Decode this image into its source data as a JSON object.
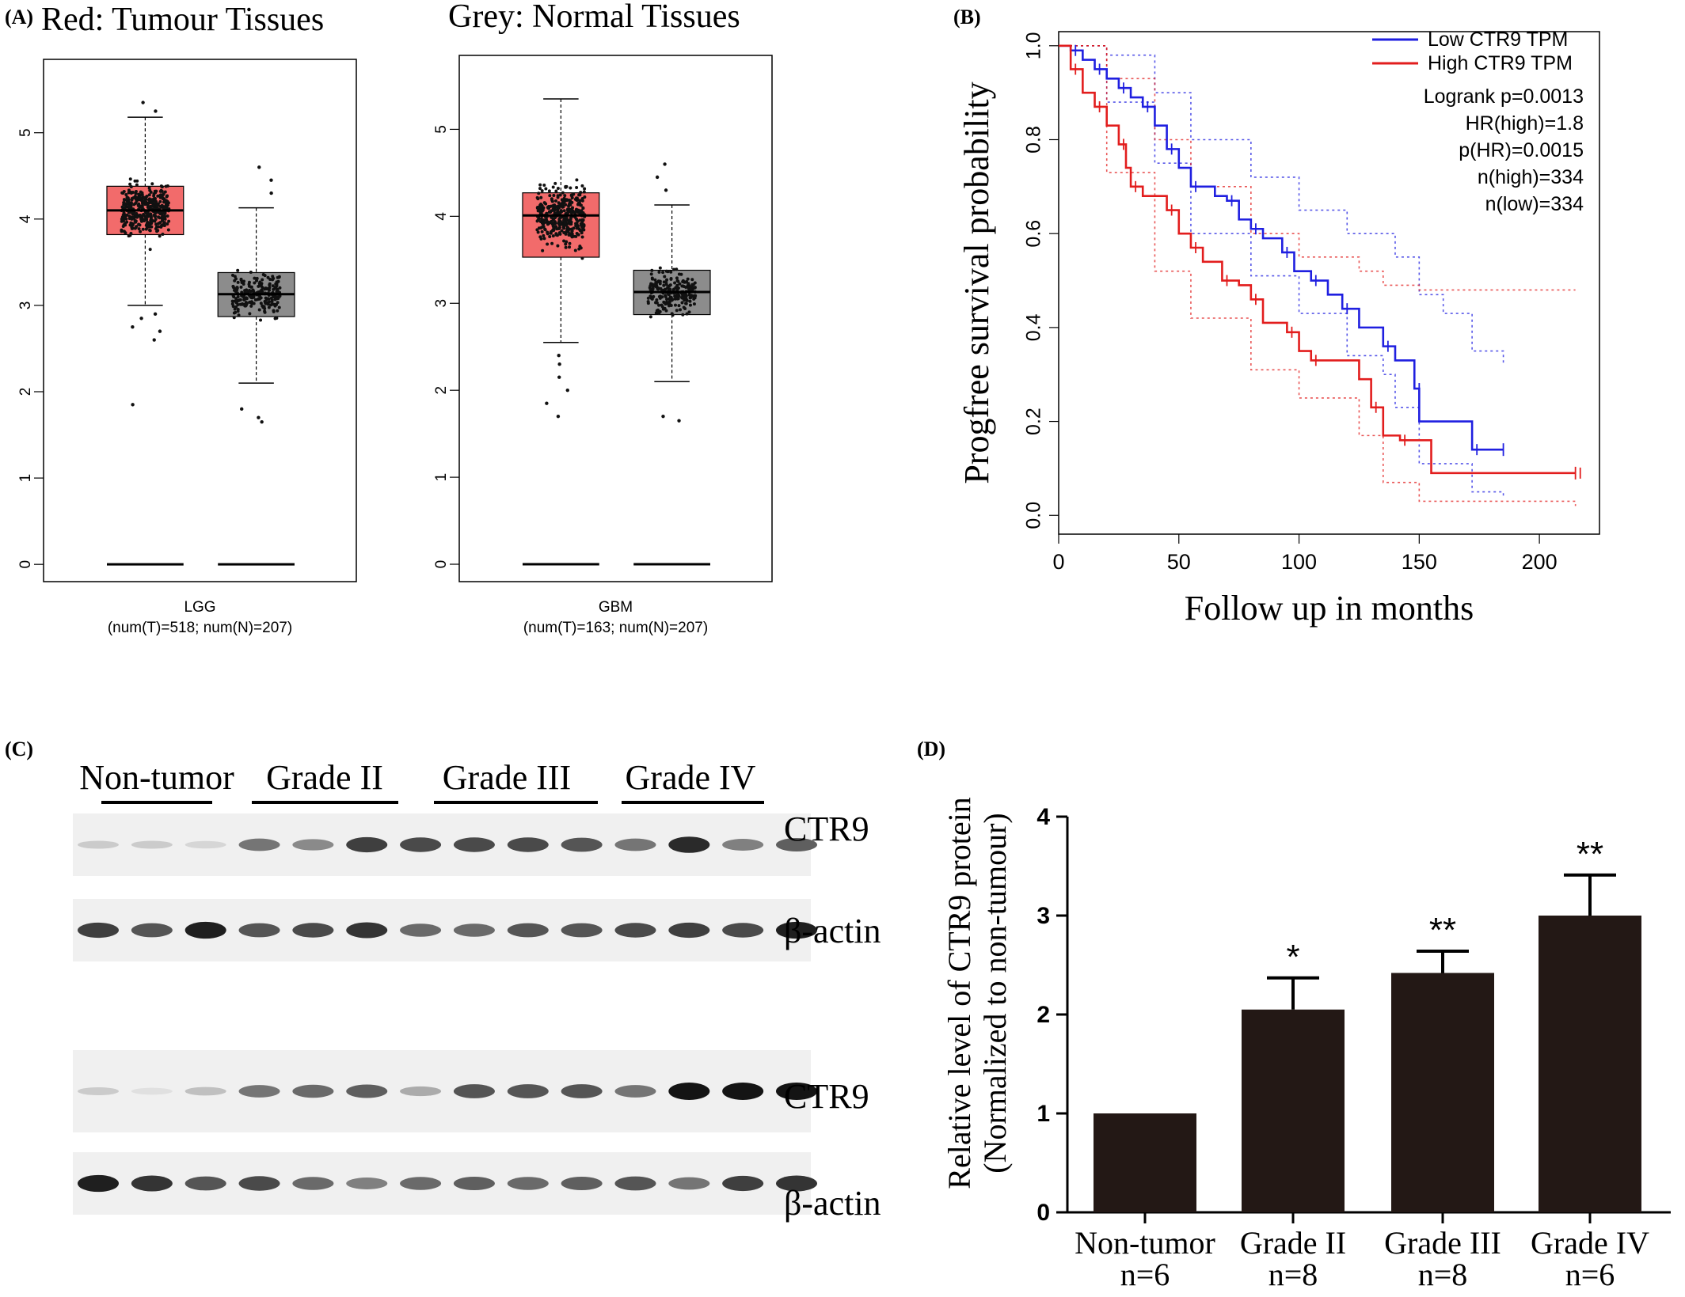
{
  "panel_labels": {
    "a": "(A)",
    "b": "(B)",
    "c": "(C)",
    "d": "(D)"
  },
  "panel_a": {
    "title_red": "Red: Tumour Tissues",
    "title_grey": "Grey: Normal Tissues",
    "colors": {
      "tumour": "#f26b6b",
      "normal": "#8c8c8c"
    }
  },
  "panel_b": {
    "xlabel": "Follow up in months",
    "ylabel": "Progfree survival probability",
    "legend": [
      {
        "label": "Low CTR9 TPM",
        "color": "#1f1fe0"
      },
      {
        "label": "High CTR9 TPM",
        "color": "#e21d1d"
      }
    ],
    "stats": [
      "Logrank p=0.0013",
      "HR(high)=1.8",
      "p(HR)=0.0015",
      "n(high)=334",
      "n(low)=334"
    ]
  },
  "panel_c": {
    "group_labels": [
      "Non-tumor",
      "Grade II",
      "Grade III",
      "Grade IV"
    ],
    "blot_labels": [
      "CTR9",
      "β-actin",
      "CTR9",
      "β-actin"
    ],
    "lane_groups": [
      3,
      4,
      4,
      3
    ],
    "band_intensity": [
      [
        0.15,
        0.15,
        0.1,
        0.55,
        0.45,
        0.8,
        0.75,
        0.75,
        0.75,
        0.7,
        0.55,
        0.9,
        0.5,
        0.65
      ],
      [
        0.8,
        0.7,
        0.95,
        0.7,
        0.75,
        0.85,
        0.6,
        0.6,
        0.7,
        0.7,
        0.75,
        0.8,
        0.75,
        0.95
      ],
      [
        0.15,
        0.05,
        0.2,
        0.55,
        0.6,
        0.65,
        0.3,
        0.7,
        0.7,
        0.7,
        0.55,
        1.0,
        1.0,
        1.0
      ],
      [
        0.95,
        0.85,
        0.7,
        0.75,
        0.6,
        0.5,
        0.6,
        0.65,
        0.6,
        0.65,
        0.7,
        0.55,
        0.8,
        0.85
      ]
    ]
  },
  "chart_data": [
    {
      "type": "box",
      "panel": "A-left",
      "categories": [
        "LGG"
      ],
      "xlabel": "LGG",
      "subtitle": "(num(T)=518; num(N)=207)",
      "yticks": [
        "0",
        "1",
        "2",
        "3",
        "4",
        "5"
      ],
      "ylim": [
        -0.2,
        5.85
      ],
      "groups": [
        {
          "name": "Tumour",
          "color": "#f26b6b",
          "min": 3.0,
          "q1": 3.82,
          "median": 4.1,
          "q3": 4.38,
          "max": 5.18,
          "outliers": [
            2.6,
            2.7,
            2.75,
            2.85,
            2.9,
            1.85,
            5.25,
            5.35
          ]
        },
        {
          "name": "Normal",
          "color": "#8c8c8c",
          "min": 2.1,
          "q1": 2.87,
          "median": 3.13,
          "q3": 3.38,
          "max": 4.13,
          "outliers": [
            1.65,
            1.7,
            1.8,
            4.3,
            4.45,
            4.6
          ]
        }
      ],
      "zero_lines": [
        0,
        0
      ]
    },
    {
      "type": "box",
      "panel": "A-right",
      "categories": [
        "GBM"
      ],
      "xlabel": "GBM",
      "subtitle": "(num(T)=163; num(N)=207)",
      "yticks": [
        "0",
        "1",
        "2",
        "3",
        "4",
        "5"
      ],
      "ylim": [
        -0.2,
        5.85
      ],
      "groups": [
        {
          "name": "Tumour",
          "color": "#f26b6b",
          "min": 2.55,
          "q1": 3.53,
          "median": 4.01,
          "q3": 4.27,
          "max": 5.35,
          "outliers": [
            1.7,
            1.85,
            2.0,
            2.15,
            2.3,
            2.4
          ]
        },
        {
          "name": "Normal",
          "color": "#8c8c8c",
          "min": 2.1,
          "q1": 2.87,
          "median": 3.13,
          "q3": 3.38,
          "max": 4.13,
          "outliers": [
            1.65,
            1.7,
            4.3,
            4.45,
            4.6
          ]
        }
      ],
      "zero_lines": [
        0,
        0
      ]
    },
    {
      "type": "line",
      "panel": "B",
      "xlabel": "Follow up in months",
      "ylabel": "Progfree survival probability",
      "xticks": [
        0,
        50,
        100,
        150,
        200
      ],
      "yticks": [
        "0.0",
        "0.2",
        "0.4",
        "0.6",
        "0.8",
        "1.0"
      ],
      "xlim": [
        0,
        225
      ],
      "ylim": [
        -0.04,
        1.03
      ],
      "series": [
        {
          "name": "Low CTR9 TPM",
          "color": "#1f1fe0",
          "steps": [
            [
              0,
              1.0
            ],
            [
              5,
              0.99
            ],
            [
              10,
              0.97
            ],
            [
              15,
              0.95
            ],
            [
              20,
              0.93
            ],
            [
              25,
              0.91
            ],
            [
              30,
              0.89
            ],
            [
              35,
              0.87
            ],
            [
              40,
              0.83
            ],
            [
              45,
              0.78
            ],
            [
              50,
              0.74
            ],
            [
              55,
              0.7
            ],
            [
              65,
              0.68
            ],
            [
              70,
              0.67
            ],
            [
              75,
              0.63
            ],
            [
              80,
              0.61
            ],
            [
              85,
              0.59
            ],
            [
              93,
              0.56
            ],
            [
              98,
              0.52
            ],
            [
              105,
              0.5
            ],
            [
              112,
              0.47
            ],
            [
              118,
              0.44
            ],
            [
              125,
              0.4
            ],
            [
              135,
              0.36
            ],
            [
              140,
              0.33
            ],
            [
              148,
              0.27
            ],
            [
              150,
              0.2
            ],
            [
              172,
              0.14
            ],
            [
              185,
              0.14
            ]
          ],
          "upper": [
            [
              0,
              1.0
            ],
            [
              20,
              0.98
            ],
            [
              40,
              0.9
            ],
            [
              55,
              0.8
            ],
            [
              80,
              0.72
            ],
            [
              100,
              0.65
            ],
            [
              120,
              0.6
            ],
            [
              140,
              0.55
            ],
            [
              150,
              0.47
            ],
            [
              160,
              0.43
            ],
            [
              172,
              0.35
            ],
            [
              185,
              0.32
            ]
          ],
          "lower": [
            [
              0,
              1.0
            ],
            [
              20,
              0.88
            ],
            [
              40,
              0.75
            ],
            [
              55,
              0.6
            ],
            [
              80,
              0.51
            ],
            [
              100,
              0.43
            ],
            [
              120,
              0.34
            ],
            [
              135,
              0.3
            ],
            [
              140,
              0.23
            ],
            [
              150,
              0.11
            ],
            [
              172,
              0.05
            ],
            [
              185,
              0.04
            ]
          ]
        },
        {
          "name": "High CTR9 TPM",
          "color": "#e21d1d",
          "steps": [
            [
              0,
              1.0
            ],
            [
              5,
              0.95
            ],
            [
              10,
              0.9
            ],
            [
              15,
              0.87
            ],
            [
              20,
              0.83
            ],
            [
              25,
              0.79
            ],
            [
              28,
              0.74
            ],
            [
              30,
              0.7
            ],
            [
              35,
              0.68
            ],
            [
              45,
              0.65
            ],
            [
              50,
              0.6
            ],
            [
              55,
              0.57
            ],
            [
              60,
              0.54
            ],
            [
              68,
              0.5
            ],
            [
              75,
              0.49
            ],
            [
              80,
              0.46
            ],
            [
              85,
              0.41
            ],
            [
              95,
              0.39
            ],
            [
              100,
              0.35
            ],
            [
              105,
              0.33
            ],
            [
              125,
              0.29
            ],
            [
              130,
              0.23
            ],
            [
              135,
              0.17
            ],
            [
              142,
              0.16
            ],
            [
              155,
              0.09
            ],
            [
              215,
              0.09
            ]
          ],
          "upper": [
            [
              0,
              1.0
            ],
            [
              20,
              0.93
            ],
            [
              40,
              0.8
            ],
            [
              55,
              0.7
            ],
            [
              80,
              0.6
            ],
            [
              100,
              0.55
            ],
            [
              125,
              0.52
            ],
            [
              135,
              0.49
            ],
            [
              150,
              0.48
            ],
            [
              215,
              0.48
            ]
          ],
          "lower": [
            [
              0,
              1.0
            ],
            [
              20,
              0.73
            ],
            [
              40,
              0.52
            ],
            [
              55,
              0.42
            ],
            [
              80,
              0.31
            ],
            [
              100,
              0.25
            ],
            [
              125,
              0.17
            ],
            [
              135,
              0.07
            ],
            [
              150,
              0.03
            ],
            [
              215,
              0.02
            ]
          ]
        }
      ]
    },
    {
      "type": "bar",
      "panel": "D",
      "ylabel": "Relative level of CTR9 protein",
      "ylabel2": "(Normalized to non-tumour)",
      "categories": [
        "Non-tumor",
        "Grade II",
        "Grade III",
        "Grade IV"
      ],
      "sublabels": [
        "n=6",
        "n=8",
        "n=8",
        "n=6"
      ],
      "values": [
        1.0,
        2.05,
        2.42,
        3.0
      ],
      "errors": [
        0.0,
        0.32,
        0.22,
        0.41
      ],
      "significance": [
        "",
        "*",
        "**",
        "**"
      ],
      "yticks": [
        "0",
        "1",
        "2",
        "3",
        "4"
      ],
      "ylim": [
        0,
        4
      ],
      "color": "#231815"
    }
  ]
}
